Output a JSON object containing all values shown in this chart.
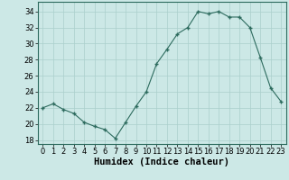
{
  "x": [
    0,
    1,
    2,
    3,
    4,
    5,
    6,
    7,
    8,
    9,
    10,
    11,
    12,
    13,
    14,
    15,
    16,
    17,
    18,
    19,
    20,
    21,
    22,
    23
  ],
  "y": [
    22,
    22.5,
    21.8,
    21.3,
    20.2,
    19.7,
    19.3,
    18.2,
    20.2,
    22.2,
    24.0,
    27.5,
    29.3,
    31.2,
    32.0,
    34.0,
    33.7,
    34.0,
    33.3,
    33.3,
    32.0,
    28.3,
    24.5,
    22.8
  ],
  "xlabel": "Humidex (Indice chaleur)",
  "ylim": [
    17.5,
    35.2
  ],
  "xlim": [
    -0.5,
    23.5
  ],
  "yticks": [
    18,
    20,
    22,
    24,
    26,
    28,
    30,
    32,
    34
  ],
  "xticks": [
    0,
    1,
    2,
    3,
    4,
    5,
    6,
    7,
    8,
    9,
    10,
    11,
    12,
    13,
    14,
    15,
    16,
    17,
    18,
    19,
    20,
    21,
    22,
    23
  ],
  "line_color": "#2d6b5e",
  "marker_color": "#2d6b5e",
  "bg_color": "#cce8e6",
  "grid_color": "#aacfcc",
  "xlabel_fontsize": 7.5,
  "tick_fontsize": 6.0
}
